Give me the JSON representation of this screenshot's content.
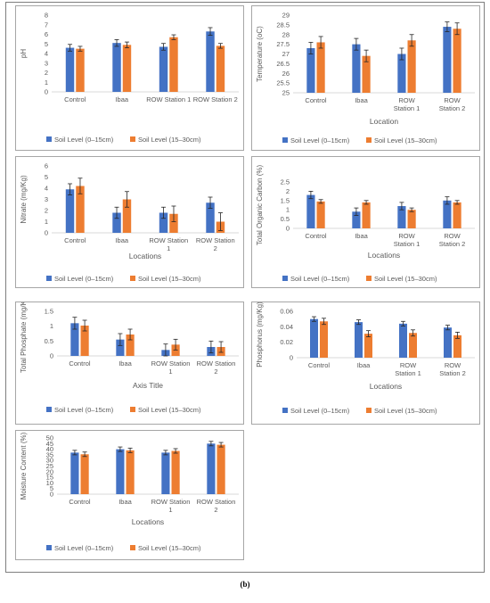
{
  "caption": "(b)",
  "colors": {
    "s1": "#4472C4",
    "s2": "#ED7D31",
    "axis": "#d9d9d9",
    "text": "#595959"
  },
  "categories": [
    "Control",
    "Ibaa",
    "ROW Station 1",
    "ROW Station 2"
  ],
  "chart_data": [
    {
      "type": "bar",
      "title": "",
      "xlabel": "",
      "ylabel": "pH",
      "categories": [
        "Control",
        "Ibaa",
        "ROW Station 1",
        "ROW Station 2"
      ],
      "category_lines": [
        [
          "Control"
        ],
        [
          "Ibaa"
        ],
        [
          "ROW Station 1"
        ],
        [
          "ROW Station 2"
        ]
      ],
      "yticks": [
        "0",
        "1",
        "2",
        "3",
        "4",
        "5",
        "6",
        "7",
        "8"
      ],
      "ylim": [
        0,
        8
      ],
      "series": [
        {
          "name": "Soil Level (0–15cm)",
          "values": [
            4.6,
            5.1,
            4.7,
            6.3
          ],
          "errors": [
            0.35,
            0.35,
            0.35,
            0.4
          ]
        },
        {
          "name": "Soil Level (15–30cm)",
          "values": [
            4.5,
            4.9,
            5.7,
            4.8
          ],
          "errors": [
            0.25,
            0.3,
            0.25,
            0.25
          ]
        }
      ],
      "legend": "bottom"
    },
    {
      "type": "bar",
      "title": "",
      "xlabel": "Location",
      "ylabel": "Temperature (oC)",
      "categories": [
        "Control",
        "Ibaa",
        "ROW Station 1",
        "ROW Station 2"
      ],
      "category_lines": [
        [
          "Control"
        ],
        [
          "Ibaa"
        ],
        [
          "ROW",
          "Station 1"
        ],
        [
          "ROW",
          "Station 2"
        ]
      ],
      "yticks": [
        "25",
        "25.5",
        "26",
        "26.5",
        "27",
        "27.5",
        "28",
        "28.5",
        "29"
      ],
      "ylim": [
        25,
        29
      ],
      "series": [
        {
          "name": "Soil Level (0–15cm)",
          "values": [
            27.3,
            27.5,
            27.0,
            28.4
          ],
          "errors": [
            0.3,
            0.3,
            0.3,
            0.25
          ]
        },
        {
          "name": "Soil Level (15–30cm)",
          "values": [
            27.6,
            26.9,
            27.7,
            28.3
          ],
          "errors": [
            0.3,
            0.3,
            0.3,
            0.3
          ]
        }
      ],
      "legend": "bottom"
    },
    {
      "type": "bar",
      "title": "",
      "xlabel": "Locations",
      "ylabel": "Nitrate (mg/Kg)",
      "categories": [
        "Control",
        "Ibaa",
        "ROW Station 1",
        "ROW Station 2"
      ],
      "category_lines": [
        [
          "Control"
        ],
        [
          "Ibaa"
        ],
        [
          "ROW Station",
          "1"
        ],
        [
          "ROW Station",
          "2"
        ]
      ],
      "yticks": [
        "0",
        "1",
        "2",
        "3",
        "4",
        "5",
        "6"
      ],
      "ylim": [
        0,
        6
      ],
      "series": [
        {
          "name": "Soil Level (0–15cm)",
          "values": [
            3.9,
            1.8,
            1.8,
            2.7
          ],
          "errors": [
            0.5,
            0.5,
            0.5,
            0.5
          ]
        },
        {
          "name": "Soil Level (15–30cm)",
          "values": [
            4.2,
            3.0,
            1.7,
            1.0
          ],
          "errors": [
            0.7,
            0.7,
            0.7,
            0.8
          ]
        }
      ],
      "legend": "bottom"
    },
    {
      "type": "bar",
      "title": "",
      "xlabel": "Locations",
      "ylabel": "Total Organic Carbon (%)",
      "categories": [
        "Control",
        "Ibaa",
        "ROW Station 1",
        "ROW Station 2"
      ],
      "category_lines": [
        [
          "Control"
        ],
        [
          "Ibaa"
        ],
        [
          "ROW",
          "Station 1"
        ],
        [
          "ROW",
          "Station 2"
        ]
      ],
      "yticks": [
        "0",
        "0.5",
        "1",
        "1.5",
        "2",
        "2.5"
      ],
      "ylim": [
        0,
        2.5
      ],
      "series": [
        {
          "name": "Soil Level (0–15cm)",
          "values": [
            1.8,
            0.9,
            1.2,
            1.5
          ],
          "errors": [
            0.2,
            0.2,
            0.2,
            0.2
          ]
        },
        {
          "name": "Soil Level (15–30cm)",
          "values": [
            1.45,
            1.4,
            1.0,
            1.4
          ],
          "errors": [
            0.1,
            0.1,
            0.1,
            0.1
          ]
        }
      ],
      "legend": "bottom"
    },
    {
      "type": "bar",
      "title": "",
      "xlabel": "Axis Title",
      "ylabel": "Total Phosphate (mg/Kg)",
      "categories": [
        "Control",
        "Ibaa",
        "ROW Station 1",
        "ROW Station 2"
      ],
      "category_lines": [
        [
          "Control"
        ],
        [
          "Ibaa"
        ],
        [
          "ROW Station",
          "1"
        ],
        [
          "ROW Station",
          "2"
        ]
      ],
      "yticks": [
        "0",
        "0.5",
        "1",
        "1.5"
      ],
      "ylim": [
        0,
        1.5
      ],
      "series": [
        {
          "name": "Soil Level (0–15cm)",
          "values": [
            1.1,
            0.55,
            0.2,
            0.3
          ],
          "errors": [
            0.2,
            0.2,
            0.2,
            0.2
          ]
        },
        {
          "name": "Soil Level (15–30cm)",
          "values": [
            1.02,
            0.72,
            0.38,
            0.3
          ],
          "errors": [
            0.18,
            0.18,
            0.18,
            0.18
          ]
        }
      ],
      "legend": "bottom"
    },
    {
      "type": "bar",
      "title": "",
      "xlabel": "Locations",
      "ylabel": "Phosphorus (mg/Kg)",
      "categories": [
        "Control",
        "Ibaa",
        "ROW Station 1",
        "ROW Station 2"
      ],
      "category_lines": [
        [
          "Control"
        ],
        [
          "Ibaa"
        ],
        [
          "ROW",
          "Station 1"
        ],
        [
          "ROW",
          "Station 2"
        ]
      ],
      "yticks": [
        "0",
        "0.02",
        "0.04",
        "0.06"
      ],
      "ylim": [
        0,
        0.06
      ],
      "series": [
        {
          "name": "Soil Level (0–15cm)",
          "values": [
            0.05,
            0.046,
            0.044,
            0.039
          ],
          "errors": [
            0.003,
            0.003,
            0.003,
            0.003
          ]
        },
        {
          "name": "Soil Level (15–30cm)",
          "values": [
            0.047,
            0.031,
            0.032,
            0.029
          ],
          "errors": [
            0.004,
            0.004,
            0.004,
            0.004
          ]
        }
      ],
      "legend": "bottom"
    },
    {
      "type": "bar",
      "title": "",
      "xlabel": "Locations",
      "ylabel": "Moisture Content (%)",
      "categories": [
        "Control",
        "Ibaa",
        "ROW Station 1",
        "ROW Station 2"
      ],
      "category_lines": [
        [
          "Control"
        ],
        [
          "Ibaa"
        ],
        [
          "ROW Station",
          "1"
        ],
        [
          "ROW Station",
          "2"
        ]
      ],
      "yticks": [
        "0",
        "5",
        "10",
        "15",
        "20",
        "25",
        "30",
        "35",
        "40",
        "45",
        "50"
      ],
      "ylim": [
        0,
        50
      ],
      "series": [
        {
          "name": "Soil Level (0–15cm)",
          "values": [
            37,
            40,
            37,
            45
          ],
          "errors": [
            2,
            2,
            2,
            2
          ]
        },
        {
          "name": "Soil Level (15–30cm)",
          "values": [
            35.5,
            39,
            38.5,
            44
          ],
          "errors": [
            2,
            2,
            2,
            2
          ]
        }
      ],
      "legend": "bottom"
    }
  ]
}
